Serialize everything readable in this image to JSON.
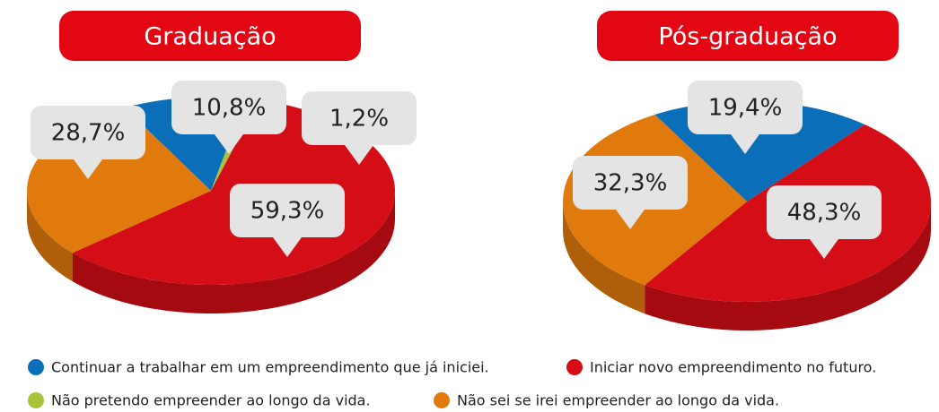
{
  "chart_data": [
    {
      "type": "pie",
      "title": "Graduação",
      "categories": [
        "Continuar a  trabalhar em um empreendimento que já iniciei.",
        "Iniciar novo empreendimento no futuro.",
        "Não pretendo empreender ao longo da vida.",
        "Não sei se irei empreender ao longo da vida."
      ],
      "values": [
        10.8,
        59.3,
        1.2,
        28.7
      ],
      "value_labels": [
        "10,8%",
        "59,3%",
        "1,2%",
        "28,7%"
      ],
      "colors": [
        "#0a6fb8",
        "#d40d16",
        "#a9c23a",
        "#e07a0c"
      ]
    },
    {
      "type": "pie",
      "title": "Pós-graduação",
      "categories": [
        "Continuar a  trabalhar em um empreendimento que já iniciei.",
        "Iniciar novo empreendimento no futuro.",
        "Não sei se irei empreender ao longo da vida."
      ],
      "values": [
        19.4,
        48.3,
        32.3
      ],
      "value_labels": [
        "19,4%",
        "48,3%",
        "32,3%"
      ],
      "colors": [
        "#0a6fb8",
        "#d40d16",
        "#e07a0c"
      ]
    }
  ]
}
